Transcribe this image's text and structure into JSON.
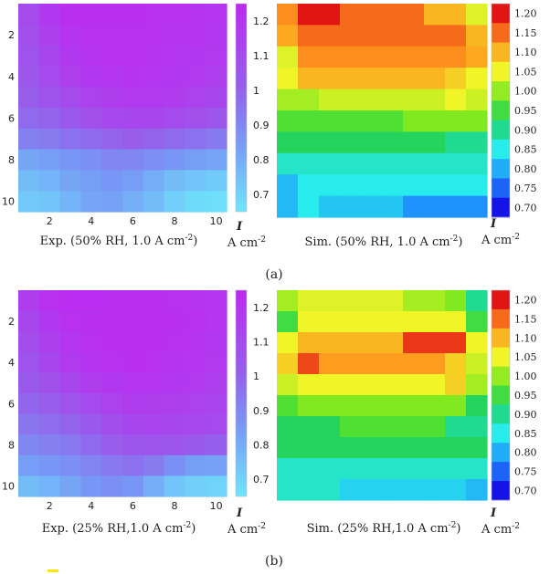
{
  "figure": {
    "panel_labels": [
      "(a)",
      "(b)"
    ],
    "colorbar_unit_symbol": "I",
    "colorbar_unit_text": "A cm",
    "colorbar_unit_exp": "-2",
    "marker_color": "#ffe600"
  },
  "chart_data": [
    {
      "id": "a-exp",
      "type": "heatmap",
      "title": "Exp. (50% RH, 1.0 A cm-2)",
      "caption_main": "Exp. (50% RH, 1.0 A cm",
      "caption_sup": "-2",
      "caption_end": ")",
      "rows": 10,
      "cols": 10,
      "x_ticks": [
        "2",
        "4",
        "6",
        "8",
        "10"
      ],
      "y_ticks": [
        "2",
        "4",
        "6",
        "8",
        "10"
      ],
      "colormap": "cool",
      "vmin": 0.65,
      "vmax": 1.25,
      "colorbar_ticks": [
        "1.2",
        "1.1",
        "1",
        "0.9",
        "0.8",
        "0.7"
      ],
      "colorbar_tick_values": [
        1.2,
        1.1,
        1.0,
        0.9,
        0.8,
        0.7
      ],
      "values": [
        [
          1.1,
          1.18,
          1.22,
          1.22,
          1.22,
          1.22,
          1.21,
          1.21,
          1.2,
          1.19
        ],
        [
          1.08,
          1.15,
          1.2,
          1.21,
          1.21,
          1.21,
          1.21,
          1.2,
          1.2,
          1.18
        ],
        [
          1.06,
          1.12,
          1.18,
          1.2,
          1.21,
          1.21,
          1.2,
          1.19,
          1.18,
          1.17
        ],
        [
          1.05,
          1.1,
          1.15,
          1.18,
          1.19,
          1.2,
          1.19,
          1.18,
          1.17,
          1.15
        ],
        [
          1.02,
          1.06,
          1.1,
          1.14,
          1.16,
          1.17,
          1.17,
          1.16,
          1.14,
          1.12
        ],
        [
          0.98,
          1.0,
          1.04,
          1.08,
          1.11,
          1.12,
          1.12,
          1.1,
          1.08,
          1.05
        ],
        [
          0.92,
          0.93,
          0.96,
          0.98,
          1.0,
          1.02,
          1.0,
          0.98,
          0.96,
          0.94
        ],
        [
          0.82,
          0.84,
          0.86,
          0.88,
          0.9,
          0.9,
          0.88,
          0.86,
          0.84,
          0.82
        ],
        [
          0.76,
          0.78,
          0.82,
          0.84,
          0.86,
          0.84,
          0.8,
          0.76,
          0.74,
          0.72
        ],
        [
          0.73,
          0.74,
          0.78,
          0.82,
          0.83,
          0.8,
          0.76,
          0.71,
          0.68,
          0.67
        ]
      ]
    },
    {
      "id": "a-sim",
      "type": "heatmap",
      "title": "Sim. (50% RH, 1.0 A cm-2)",
      "caption_main": "Sim. (50% RH, 1.0 A cm",
      "caption_sup": "-2",
      "caption_end": ")",
      "rows": 10,
      "cols": 10,
      "x_ticks": [],
      "y_ticks": [],
      "colormap": "jet",
      "vmin": 0.7,
      "vmax": 1.2,
      "colorbar_ticks": [
        "1.20",
        "1.15",
        "1.10",
        "1.05",
        "1.00",
        "0.95",
        "0.90",
        "0.85",
        "0.80",
        "0.75",
        "0.70"
      ],
      "colorbar_tick_values": [
        1.2,
        1.15,
        1.1,
        1.05,
        1.0,
        0.95,
        0.9,
        0.85,
        0.8,
        0.75,
        0.7
      ],
      "values": [
        [
          1.13,
          1.2,
          1.2,
          1.15,
          1.15,
          1.15,
          1.15,
          1.1,
          1.1,
          1.04
        ],
        [
          1.11,
          1.15,
          1.15,
          1.15,
          1.15,
          1.15,
          1.15,
          1.15,
          1.15,
          1.1
        ],
        [
          1.04,
          1.13,
          1.13,
          1.13,
          1.13,
          1.13,
          1.13,
          1.13,
          1.13,
          1.11
        ],
        [
          1.05,
          1.1,
          1.1,
          1.1,
          1.1,
          1.1,
          1.1,
          1.1,
          1.08,
          1.05
        ],
        [
          1.01,
          1.01,
          1.03,
          1.03,
          1.03,
          1.03,
          1.03,
          1.03,
          1.05,
          1.03
        ],
        [
          0.96,
          0.96,
          0.96,
          0.96,
          0.96,
          0.96,
          0.99,
          0.99,
          0.99,
          0.99
        ],
        [
          0.93,
          0.93,
          0.93,
          0.93,
          0.93,
          0.93,
          0.93,
          0.93,
          0.9,
          0.9
        ],
        [
          0.87,
          0.87,
          0.87,
          0.87,
          0.87,
          0.87,
          0.87,
          0.87,
          0.87,
          0.87
        ],
        [
          0.81,
          0.85,
          0.85,
          0.85,
          0.85,
          0.85,
          0.85,
          0.85,
          0.85,
          0.85
        ],
        [
          0.81,
          0.85,
          0.82,
          0.82,
          0.82,
          0.82,
          0.78,
          0.78,
          0.78,
          0.78
        ]
      ]
    },
    {
      "id": "b-exp",
      "type": "heatmap",
      "title": "Exp. (25% RH,1.0 A cm-2)",
      "caption_main": "Exp. (25% RH,1.0 A cm",
      "caption_sup": "-2",
      "caption_end": ")",
      "rows": 10,
      "cols": 10,
      "x_ticks": [
        "2",
        "4",
        "6",
        "8",
        "10"
      ],
      "y_ticks": [
        "2",
        "4",
        "6",
        "8",
        "10"
      ],
      "colormap": "cool",
      "vmin": 0.65,
      "vmax": 1.25,
      "colorbar_ticks": [
        "1.2",
        "1.1",
        "1",
        "0.9",
        "0.8",
        "0.7"
      ],
      "colorbar_tick_values": [
        1.2,
        1.1,
        1.0,
        0.9,
        0.8,
        0.7
      ],
      "values": [
        [
          1.16,
          1.21,
          1.23,
          1.23,
          1.22,
          1.22,
          1.22,
          1.21,
          1.2,
          1.19
        ],
        [
          1.12,
          1.18,
          1.21,
          1.22,
          1.22,
          1.22,
          1.22,
          1.22,
          1.21,
          1.19
        ],
        [
          1.09,
          1.15,
          1.19,
          1.21,
          1.22,
          1.22,
          1.22,
          1.21,
          1.2,
          1.18
        ],
        [
          1.06,
          1.12,
          1.17,
          1.2,
          1.21,
          1.22,
          1.21,
          1.2,
          1.19,
          1.17
        ],
        [
          1.03,
          1.07,
          1.12,
          1.16,
          1.18,
          1.19,
          1.19,
          1.18,
          1.17,
          1.15
        ],
        [
          0.99,
          1.02,
          1.06,
          1.1,
          1.14,
          1.16,
          1.16,
          1.15,
          1.14,
          1.13
        ],
        [
          0.95,
          0.97,
          1.0,
          1.04,
          1.09,
          1.12,
          1.13,
          1.12,
          1.11,
          1.1
        ],
        [
          0.9,
          0.92,
          0.94,
          0.98,
          1.02,
          1.05,
          1.06,
          1.05,
          1.03,
          1.01
        ],
        [
          0.84,
          0.86,
          0.88,
          0.91,
          0.94,
          0.96,
          0.93,
          0.88,
          0.84,
          0.83
        ],
        [
          0.76,
          0.78,
          0.82,
          0.86,
          0.88,
          0.86,
          0.8,
          0.74,
          0.71,
          0.7
        ]
      ]
    },
    {
      "id": "b-sim",
      "type": "heatmap",
      "title": "Sim. (25% RH,1.0 A cm-2)",
      "caption_main": "Sim. (25% RH,1.0 A cm",
      "caption_sup": "-2",
      "caption_end": ")",
      "rows": 10,
      "cols": 10,
      "x_ticks": [],
      "y_ticks": [],
      "colormap": "jet",
      "vmin": 0.7,
      "vmax": 1.2,
      "colorbar_ticks": [
        "1.20",
        "1.15",
        "1.10",
        "1.05",
        "1.00",
        "0.95",
        "0.90",
        "0.85",
        "0.80",
        "0.75",
        "0.70"
      ],
      "colorbar_tick_values": [
        1.2,
        1.15,
        1.1,
        1.05,
        1.0,
        0.95,
        0.9,
        0.85,
        0.8,
        0.75,
        0.7
      ],
      "values": [
        [
          1.01,
          1.04,
          1.04,
          1.04,
          1.04,
          1.04,
          1.01,
          1.01,
          0.99,
          0.9
        ],
        [
          0.95,
          1.05,
          1.05,
          1.05,
          1.05,
          1.05,
          1.05,
          1.05,
          1.05,
          0.95
        ],
        [
          1.05,
          1.1,
          1.1,
          1.1,
          1.1,
          1.1,
          1.18,
          1.18,
          1.18,
          1.05
        ],
        [
          1.08,
          1.17,
          1.12,
          1.12,
          1.12,
          1.12,
          1.12,
          1.12,
          1.08,
          1.03
        ],
        [
          1.03,
          1.05,
          1.05,
          1.05,
          1.05,
          1.05,
          1.05,
          1.05,
          1.08,
          1.01
        ],
        [
          0.96,
          0.99,
          0.99,
          0.99,
          0.99,
          0.99,
          0.99,
          0.99,
          0.99,
          0.93
        ],
        [
          0.93,
          0.93,
          0.93,
          0.96,
          0.96,
          0.96,
          0.96,
          0.96,
          0.9,
          0.9
        ],
        [
          0.93,
          0.93,
          0.93,
          0.93,
          0.93,
          0.93,
          0.93,
          0.93,
          0.93,
          0.93
        ],
        [
          0.87,
          0.87,
          0.87,
          0.87,
          0.87,
          0.87,
          0.87,
          0.87,
          0.87,
          0.87
        ],
        [
          0.87,
          0.87,
          0.87,
          0.83,
          0.83,
          0.83,
          0.83,
          0.83,
          0.83,
          0.81
        ]
      ]
    }
  ]
}
